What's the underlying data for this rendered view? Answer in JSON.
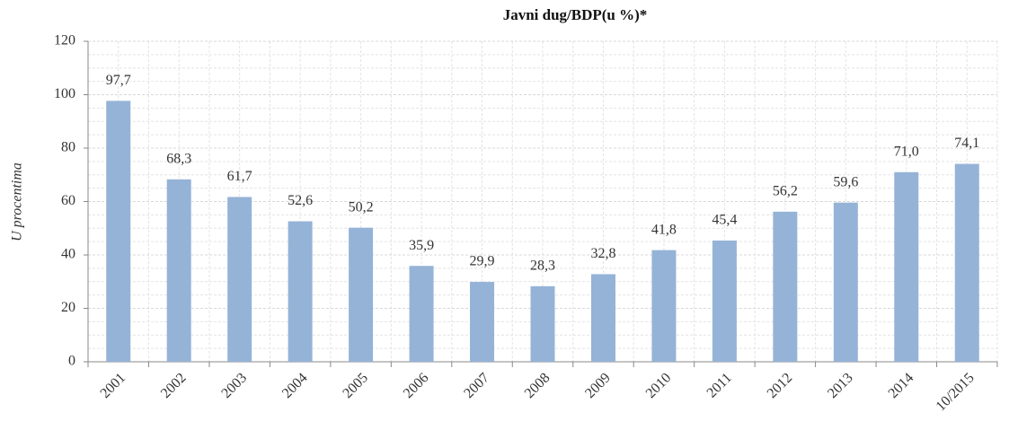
{
  "chart_data": {
    "type": "bar",
    "title": "Javni dug/BDP(u %)*",
    "y_label": "U procentima",
    "categories": [
      "2001",
      "2002",
      "2003",
      "2004",
      "2005",
      "2006",
      "2007",
      "2008",
      "2009",
      "2010",
      "2011",
      "2012",
      "2013",
      "2014",
      "10/2015"
    ],
    "values": [
      97.7,
      68.3,
      61.7,
      52.6,
      50.2,
      35.9,
      29.9,
      28.3,
      32.8,
      41.8,
      45.4,
      56.2,
      59.6,
      71.0,
      74.1
    ],
    "value_labels": [
      "97,7",
      "68,3",
      "61,7",
      "52,6",
      "50,2",
      "35,9",
      "29,9",
      "28,3",
      "32,8",
      "41,8",
      "45,4",
      "56,2",
      "59,6",
      "71,0",
      "74,1"
    ],
    "color": "#95b3d7",
    "ylim": [
      0,
      120
    ],
    "yticks": [
      0,
      20,
      40,
      60,
      80,
      100,
      120
    ],
    "grid": true
  }
}
